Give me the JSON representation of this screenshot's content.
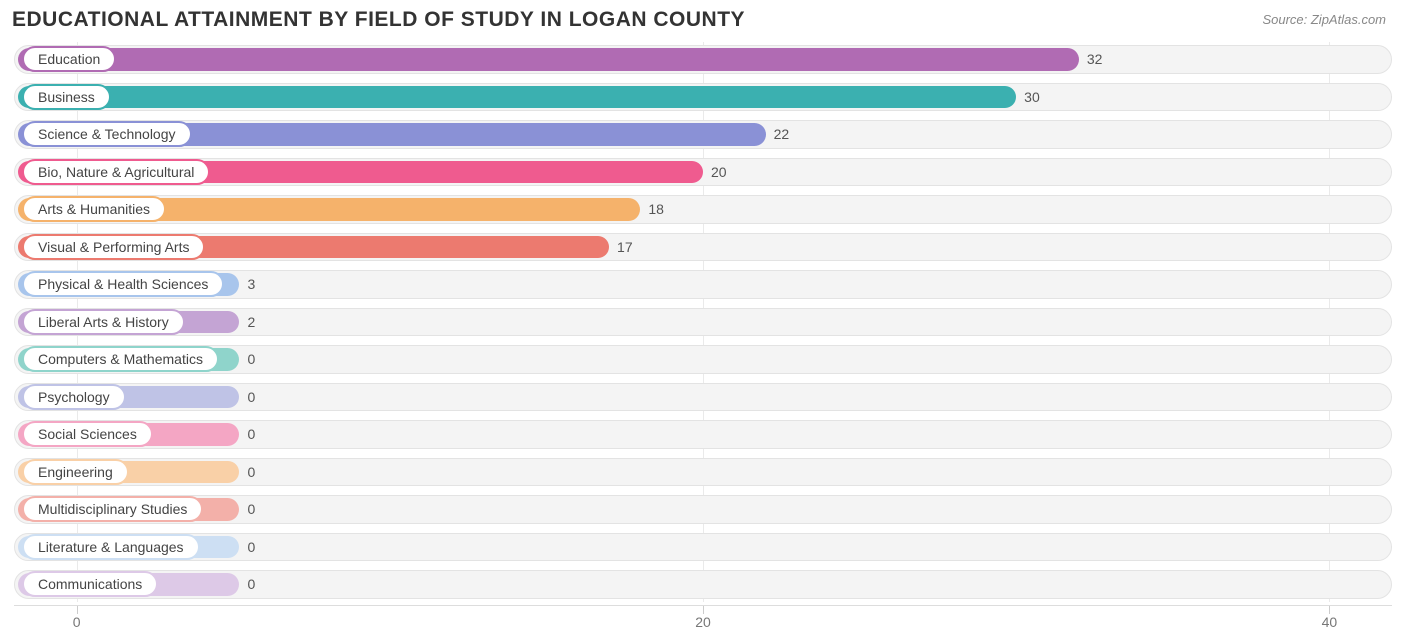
{
  "title": "EDUCATIONAL ATTAINMENT BY FIELD OF STUDY IN LOGAN COUNTY",
  "source": "Source: ZipAtlas.com",
  "chart": {
    "type": "bar-horizontal",
    "xmin": -2,
    "xmax": 42,
    "xticks": [
      0,
      20,
      40
    ],
    "track_bg": "#f4f4f4",
    "track_border": "#e3e3e3",
    "grid_color": "#eaeaea",
    "min_bar_value_for_width": 5.2,
    "rows": [
      {
        "label": "Education",
        "value": 32,
        "color": "#b06bb3"
      },
      {
        "label": "Business",
        "value": 30,
        "color": "#3bb0b0"
      },
      {
        "label": "Science & Technology",
        "value": 22,
        "color": "#8a91d6"
      },
      {
        "label": "Bio, Nature & Agricultural",
        "value": 20,
        "color": "#ef5b8f"
      },
      {
        "label": "Arts & Humanities",
        "value": 18,
        "color": "#f5b26b"
      },
      {
        "label": "Visual & Performing Arts",
        "value": 17,
        "color": "#ec7a6f"
      },
      {
        "label": "Physical & Health Sciences",
        "value": 3,
        "color": "#a8c5ec"
      },
      {
        "label": "Liberal Arts & History",
        "value": 2,
        "color": "#c4a4d4"
      },
      {
        "label": "Computers & Mathematics",
        "value": 0,
        "color": "#8fd4cb"
      },
      {
        "label": "Psychology",
        "value": 0,
        "color": "#bfc3e6"
      },
      {
        "label": "Social Sciences",
        "value": 0,
        "color": "#f4a6c4"
      },
      {
        "label": "Engineering",
        "value": 0,
        "color": "#f9d0a7"
      },
      {
        "label": "Multidisciplinary Studies",
        "value": 0,
        "color": "#f3b0a9"
      },
      {
        "label": "Literature & Languages",
        "value": 0,
        "color": "#cddff3"
      },
      {
        "label": "Communications",
        "value": 0,
        "color": "#ddc9e7"
      }
    ]
  }
}
